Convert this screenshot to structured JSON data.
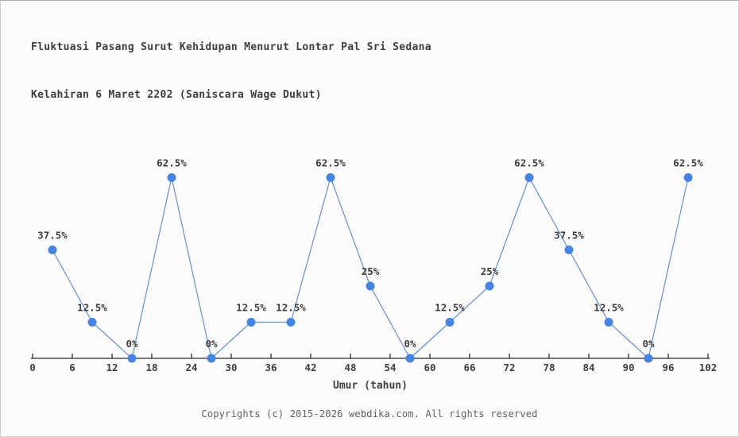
{
  "page": {
    "title_line1": "Fluktuasi Pasang Surut Kehidupan Menurut Lontar Pal Sri Sedana",
    "title_line2": "Kelahiran 6 Maret 2202 (Saniscara Wage Dukut)",
    "footer": "Copyrights (c) 2015-2026 webdika.com. All rights reserved"
  },
  "chart_data": {
    "type": "line",
    "title": "Fluktuasi Pasang Surut Kehidupan Menurut Lontar Pal Sri Sedana Kelahiran 6 Maret 2202 (Saniscara Wage Dukut)",
    "xlabel": "Umur (tahun)",
    "ylabel": "",
    "x": [
      3,
      9,
      15,
      21,
      27,
      33,
      39,
      45,
      51,
      57,
      63,
      69,
      75,
      81,
      87,
      93,
      99
    ],
    "y": [
      37.5,
      12.5,
      0,
      62.5,
      0,
      12.5,
      12.5,
      62.5,
      25,
      0,
      12.5,
      25,
      62.5,
      37.5,
      12.5,
      0,
      62.5
    ],
    "point_labels": [
      "37.5%",
      "12.5%",
      "0%",
      "62.5%",
      "0%",
      "12.5%",
      "12.5%",
      "62.5%",
      "25%",
      "0%",
      "12.5%",
      "25%",
      "62.5%",
      "37.5%",
      "12.5%",
      "0%",
      "62.5%"
    ],
    "x_ticks": [
      0,
      6,
      12,
      18,
      24,
      30,
      36,
      42,
      48,
      54,
      60,
      66,
      72,
      78,
      84,
      90,
      96,
      102
    ],
    "xlim": [
      0,
      102
    ],
    "ylim": [
      0,
      68
    ],
    "grid": false,
    "legend": false,
    "colors": {
      "line": "#5e91da",
      "marker": "#4583e6",
      "axis": "#4c4c4c",
      "label": "#3e3e3e"
    }
  }
}
